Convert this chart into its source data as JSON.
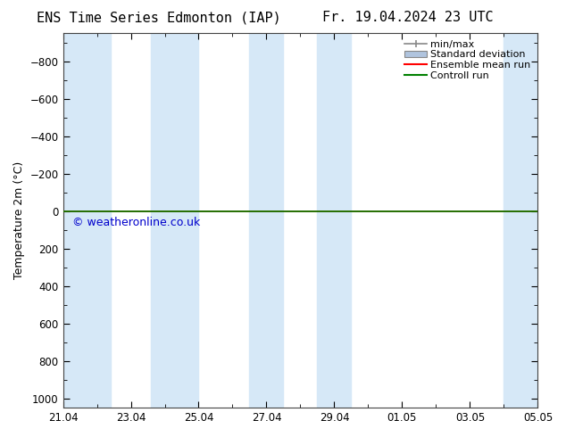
{
  "title_left": "ENS Time Series Edmonton (IAP)",
  "title_right": "Fr. 19.04.2024 23 UTC",
  "ylabel": "Temperature 2m (°C)",
  "ylim_bottom": -950,
  "ylim_top": 1050,
  "yticks": [
    -800,
    -600,
    -400,
    -200,
    0,
    200,
    400,
    600,
    800,
    1000
  ],
  "x_start": 0,
  "x_end": 14,
  "xtick_labels": [
    "21.04",
    "23.04",
    "25.04",
    "27.04",
    "29.04",
    "01.05",
    "03.05",
    "05.05"
  ],
  "xtick_positions": [
    0,
    2,
    4,
    6,
    8,
    10,
    12,
    14
  ],
  "shaded_bands": [
    [
      0,
      1.4
    ],
    [
      2.6,
      4.0
    ],
    [
      5.5,
      6.5
    ],
    [
      7.5,
      8.5
    ],
    [
      13.0,
      14.0
    ]
  ],
  "band_color": "#d6e8f7",
  "control_run_y": 0,
  "control_run_color": "#008000",
  "ensemble_mean_color": "#ff0000",
  "watermark": "© weatheronline.co.uk",
  "watermark_color": "#0000cc",
  "background_color": "#ffffff",
  "plot_bg_color": "#ffffff",
  "legend_items": [
    "min/max",
    "Standard deviation",
    "Ensemble mean run",
    "Controll run"
  ],
  "legend_colors": [
    "#888888",
    "#b0c4de",
    "#ff0000",
    "#008000"
  ],
  "title_fontsize": 11,
  "tick_label_fontsize": 8.5,
  "ylabel_fontsize": 9
}
